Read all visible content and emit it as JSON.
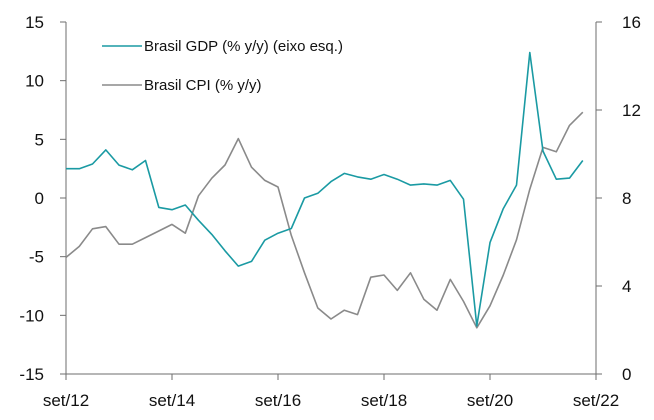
{
  "chart_data": {
    "type": "line",
    "title": "",
    "x_tick_labels": [
      "set/12",
      "set/14",
      "set/16",
      "set/18",
      "set/20",
      "set/22"
    ],
    "x_range": [
      "2012-09",
      "2022-09"
    ],
    "y_left_range": [
      -15,
      15
    ],
    "y_left_ticks": [
      "-15",
      "-10",
      "-5",
      "0",
      "5",
      "10",
      "15"
    ],
    "y_right_range": [
      0,
      16
    ],
    "y_right_ticks": [
      "0",
      "4",
      "8",
      "12",
      "16"
    ],
    "grid": false,
    "legend_position": "top-left",
    "series": [
      {
        "name": "Brasil GDP (% y/y) (eixo esq.)",
        "axis": "left",
        "color": "#1a9aa3",
        "x": [
          "2012-09",
          "2012-12",
          "2013-03",
          "2013-06",
          "2013-09",
          "2013-12",
          "2014-03",
          "2014-06",
          "2014-09",
          "2014-12",
          "2015-03",
          "2015-06",
          "2015-09",
          "2015-12",
          "2016-03",
          "2016-06",
          "2016-09",
          "2016-12",
          "2017-03",
          "2017-06",
          "2017-09",
          "2017-12",
          "2018-03",
          "2018-06",
          "2018-09",
          "2018-12",
          "2019-03",
          "2019-06",
          "2019-09",
          "2019-12",
          "2020-03",
          "2020-06",
          "2020-09",
          "2020-12",
          "2021-03",
          "2021-06",
          "2021-09",
          "2021-12",
          "2022-03",
          "2022-06"
        ],
        "values": [
          2.5,
          2.5,
          2.9,
          4.1,
          2.8,
          2.4,
          3.2,
          -0.8,
          -1.0,
          -0.6,
          -1.9,
          -3.1,
          -4.5,
          -5.8,
          -5.4,
          -3.6,
          -3.0,
          -2.6,
          0.0,
          0.4,
          1.4,
          2.1,
          1.8,
          1.6,
          2.0,
          1.6,
          1.1,
          1.2,
          1.1,
          1.5,
          -0.1,
          -10.9,
          -3.8,
          -0.9,
          1.1,
          12.4,
          4.0,
          1.6,
          1.7,
          3.2
        ]
      },
      {
        "name": "Brasil CPI (% y/y)",
        "axis": "right",
        "color": "#8a8a8a",
        "x": [
          "2012-09",
          "2012-12",
          "2013-03",
          "2013-06",
          "2013-09",
          "2013-12",
          "2014-03",
          "2014-06",
          "2014-09",
          "2014-12",
          "2015-03",
          "2015-06",
          "2015-09",
          "2015-12",
          "2016-03",
          "2016-06",
          "2016-09",
          "2016-12",
          "2017-03",
          "2017-06",
          "2017-09",
          "2017-12",
          "2018-03",
          "2018-06",
          "2018-09",
          "2018-12",
          "2019-03",
          "2019-06",
          "2019-09",
          "2019-12",
          "2020-03",
          "2020-06",
          "2020-09",
          "2020-12",
          "2021-03",
          "2021-06",
          "2021-09",
          "2021-12",
          "2022-03",
          "2022-06"
        ],
        "values": [
          5.3,
          5.8,
          6.6,
          6.7,
          5.9,
          5.9,
          6.2,
          6.5,
          6.8,
          6.4,
          8.1,
          8.9,
          9.5,
          10.7,
          9.4,
          8.8,
          8.5,
          6.3,
          4.6,
          3.0,
          2.5,
          2.9,
          2.7,
          4.4,
          4.5,
          3.8,
          4.6,
          3.4,
          2.9,
          4.3,
          3.3,
          2.1,
          3.1,
          4.5,
          6.1,
          8.4,
          10.3,
          10.1,
          11.3,
          11.9
        ]
      }
    ]
  }
}
